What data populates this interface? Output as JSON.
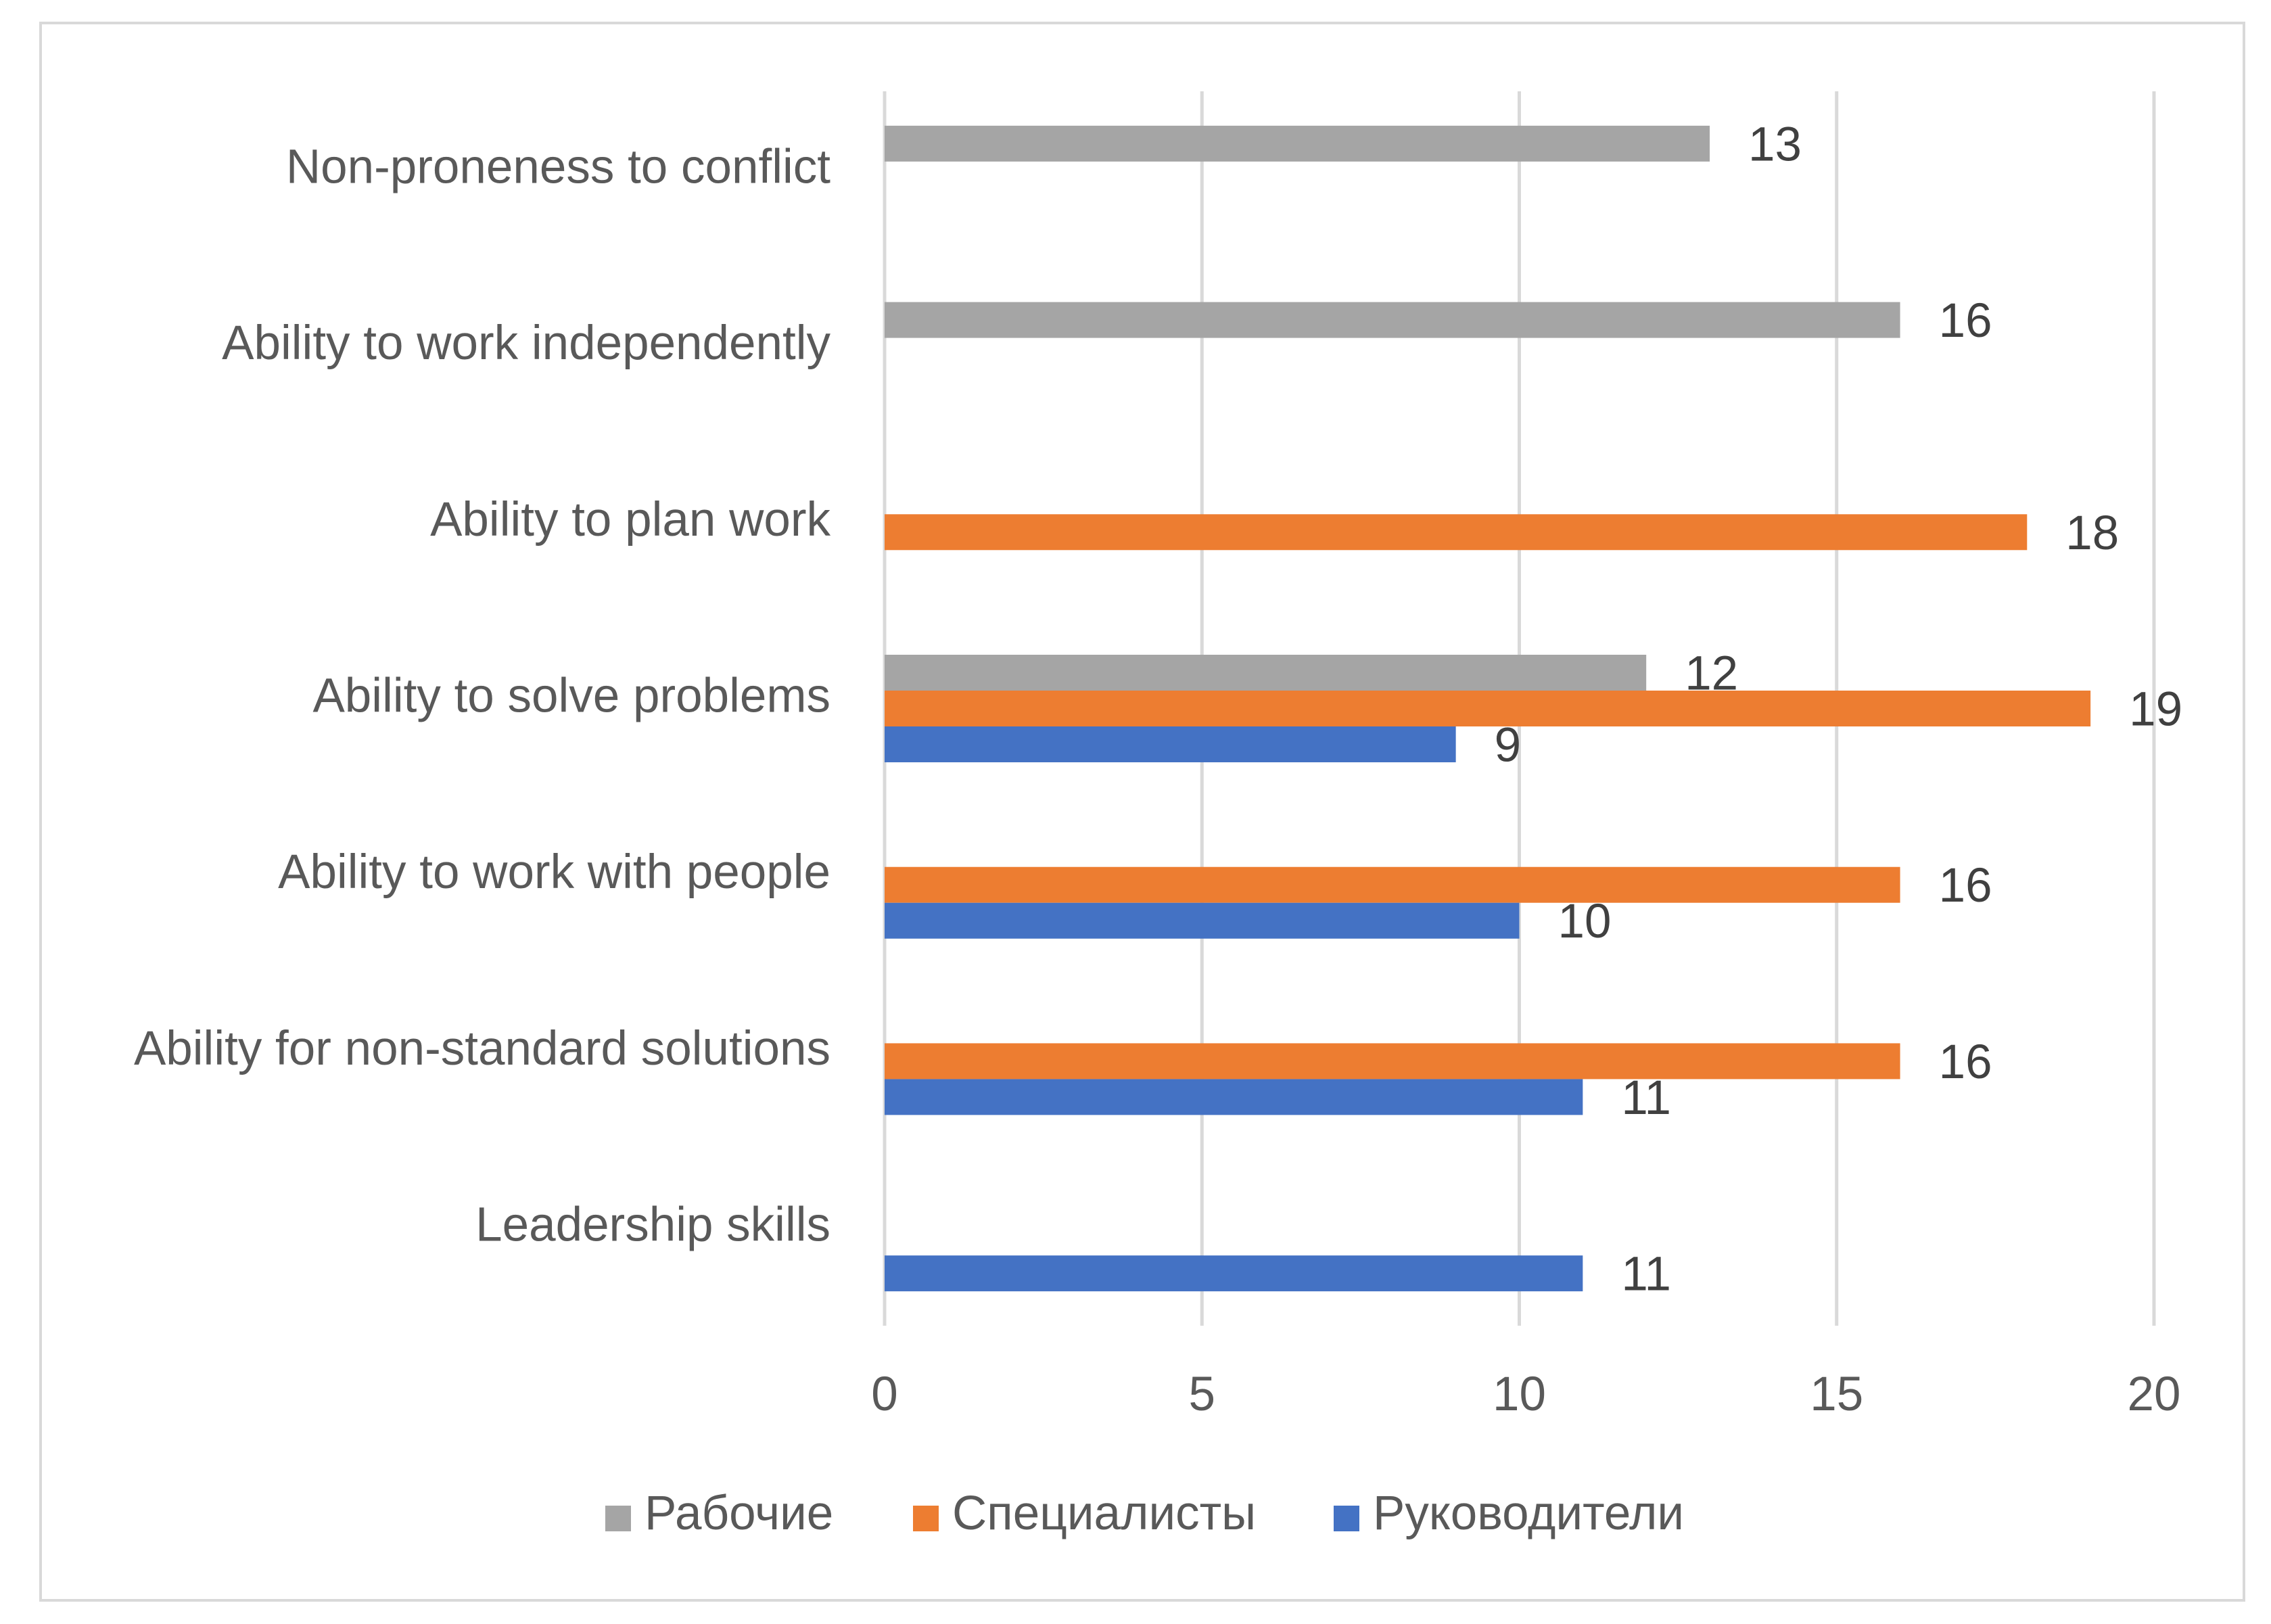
{
  "chart_data": {
    "type": "bar",
    "orientation": "horizontal",
    "title": "",
    "xlabel": "",
    "ylabel": "",
    "xlim": [
      0,
      20
    ],
    "x_ticks": [
      "0",
      "5",
      "10",
      "15",
      "20"
    ],
    "grid": true,
    "legend_position": "bottom",
    "categories": [
      "Non-proneness to conflict",
      "Ability to work independently",
      "Ability to plan work",
      "Ability to solve problems",
      "Ability to work with people",
      "Ability for non-standard solutions",
      "Leadership skills"
    ],
    "series": [
      {
        "name": "Рабочие",
        "color": "#a5a5a5",
        "values": [
          13,
          16,
          null,
          12,
          null,
          null,
          null
        ]
      },
      {
        "name": "Специалисты",
        "color": "#ed7d31",
        "values": [
          null,
          null,
          18,
          19,
          16,
          16,
          null
        ]
      },
      {
        "name": "Руководители",
        "color": "#4472c4",
        "values": [
          null,
          null,
          null,
          9,
          10,
          11,
          11
        ]
      }
    ]
  }
}
